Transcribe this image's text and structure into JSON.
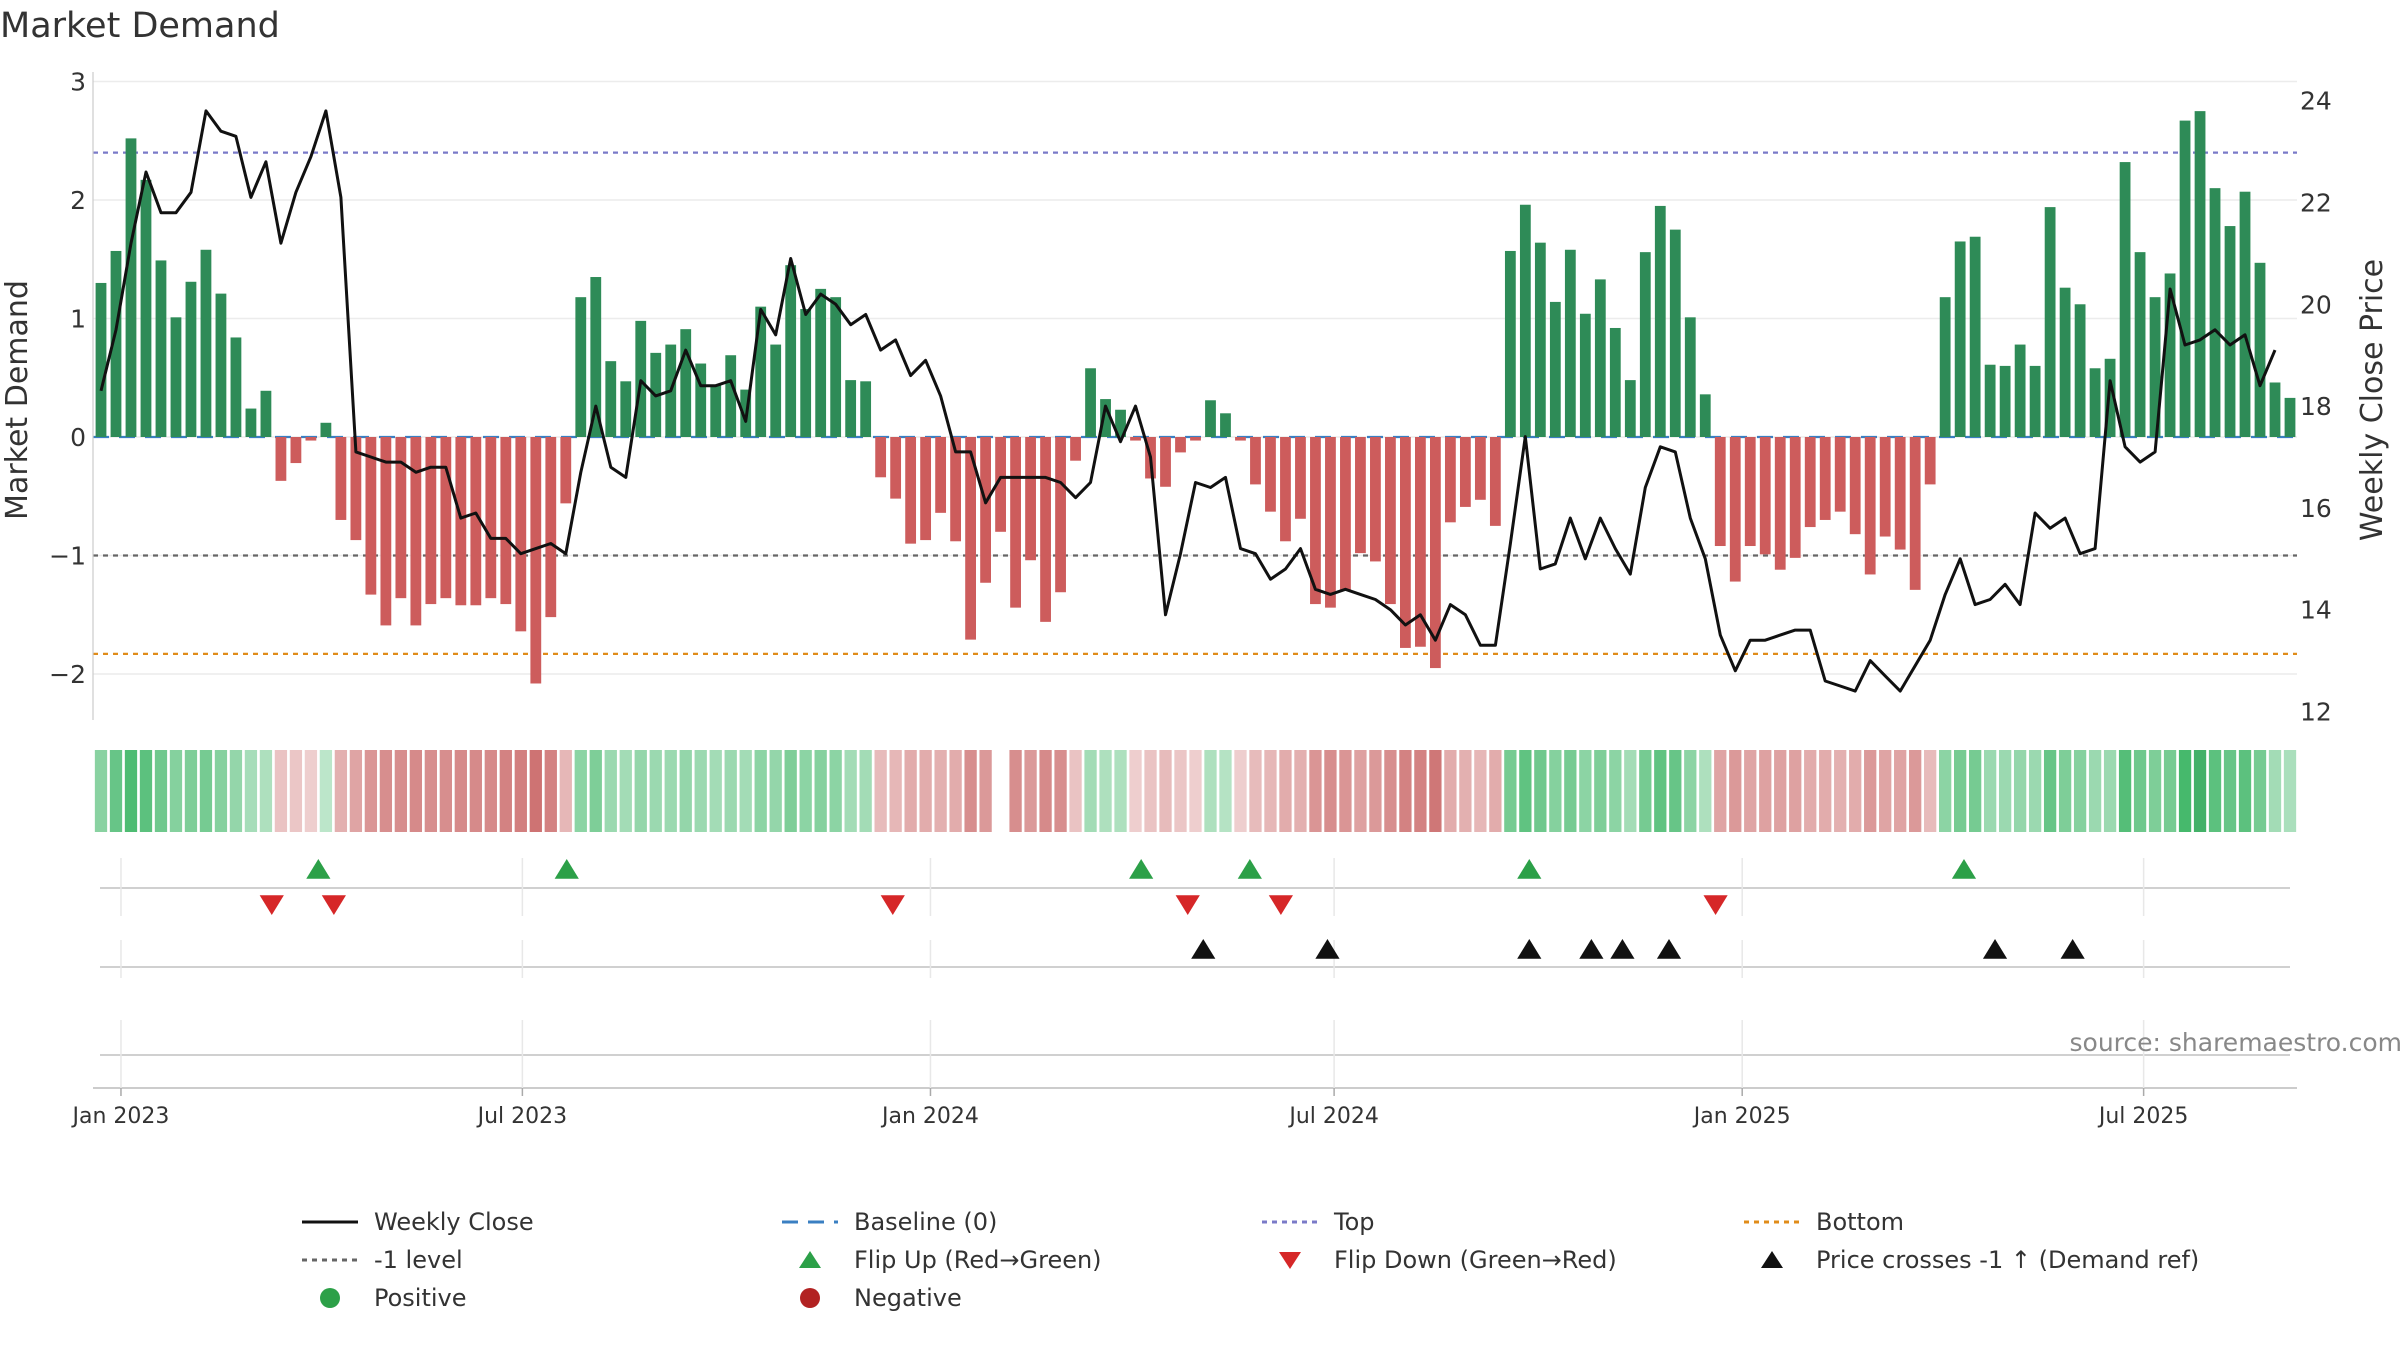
{
  "chart_data": {
    "type": "bar",
    "title": "Market Demand",
    "ylabel": "Market Demand",
    "y2label": "Weekly Close Price",
    "ylim": [
      -2.35,
      3.0
    ],
    "y2lim": [
      12,
      24.3
    ],
    "yticks": [
      -2,
      -1,
      0,
      1,
      2,
      3
    ],
    "yticklabels": [
      "−2",
      "−1",
      "0",
      "1",
      "2",
      "3"
    ],
    "y2ticks": [
      12,
      14,
      16,
      18,
      20,
      22,
      24
    ],
    "y2ticklabels": [
      "12",
      "14",
      "16",
      "18",
      "20",
      "22",
      "24"
    ],
    "x_start": "2022-12-23",
    "x_end": "2025-09-05",
    "xticks": [
      {
        "label": "Jan 2023",
        "date": "2023-01-01"
      },
      {
        "label": "Jul 2023",
        "date": "2023-07-01"
      },
      {
        "label": "Jan 2024",
        "date": "2024-01-01"
      },
      {
        "label": "Jul 2024",
        "date": "2024-07-01"
      },
      {
        "label": "Jan 2025",
        "date": "2025-01-01"
      },
      {
        "label": "Jul 2025",
        "date": "2025-07-01"
      }
    ],
    "reference_lines": [
      {
        "name": "Top",
        "value": 2.4,
        "color": "#7a7ac8"
      },
      {
        "name": "-1 level",
        "value": -1.0,
        "color": "#666666"
      },
      {
        "name": "Bottom",
        "value": -1.83,
        "color": "#e08c1a"
      },
      {
        "name": "Baseline (0)",
        "value": 0,
        "color": "#3a7fc2"
      }
    ],
    "colors": {
      "positive": "#2e8b57",
      "negative": "#cd5c5c",
      "price": "#111111",
      "flip_up": "#2ca048",
      "flip_down": "#d62728",
      "cross": "#111111"
    },
    "series": [
      {
        "name": "Market Demand",
        "values": [
          1.3,
          1.57,
          2.52,
          2.17,
          1.49,
          1.01,
          1.31,
          1.58,
          1.21,
          0.84,
          0.24,
          0.39,
          -0.37,
          -0.22,
          -0.03,
          0.12,
          -0.7,
          -0.87,
          -1.33,
          -1.59,
          -1.36,
          -1.59,
          -1.41,
          -1.36,
          -1.42,
          -1.42,
          -1.36,
          -1.41,
          -1.64,
          -2.08,
          -1.52,
          -0.56,
          1.18,
          1.35,
          0.64,
          0.47,
          0.98,
          0.71,
          0.78,
          0.91,
          0.62,
          0.44,
          0.69,
          0.4,
          1.1,
          0.78,
          1.45,
          1.08,
          1.25,
          1.18,
          0.48,
          0.47,
          -0.34,
          -0.52,
          -0.9,
          -0.87,
          -0.64,
          -0.88,
          -1.71,
          -1.23,
          -0.8,
          -1.44,
          -1.04,
          -1.56,
          -1.31,
          -0.2,
          0.58,
          0.32,
          0.23,
          -0.03,
          -0.35,
          -0.42,
          -0.13,
          -0.03,
          0.31,
          0.2,
          -0.03,
          -0.4,
          -0.63,
          -0.88,
          -0.69,
          -1.41,
          -1.44,
          -1.29,
          -0.98,
          -1.05,
          -1.41,
          -1.78,
          -1.77,
          -1.95,
          -0.72,
          -0.59,
          -0.53,
          -0.75,
          1.57,
          1.96,
          1.64,
          1.14,
          1.58,
          1.04,
          1.33,
          0.92,
          0.48,
          1.56,
          1.95,
          1.75,
          1.01,
          0.36,
          -0.92,
          -1.22,
          -0.92,
          -0.99,
          -1.12,
          -1.02,
          -0.76,
          -0.7,
          -0.63,
          -0.82,
          -1.16,
          -0.84,
          -0.95,
          -1.29,
          -0.4,
          1.18,
          1.65,
          1.69,
          0.61,
          0.6,
          0.78,
          0.6,
          1.94,
          1.26,
          1.12,
          0.58,
          0.66,
          2.32,
          1.56,
          1.18,
          1.38,
          2.67,
          2.75,
          2.1,
          1.78,
          2.07,
          1.47,
          0.46,
          0.33
        ]
      },
      {
        "name": "Weekly Close",
        "values": [
          18.3,
          19.5,
          21.2,
          22.6,
          21.8,
          21.8,
          22.2,
          23.8,
          23.4,
          23.3,
          22.1,
          22.8,
          21.2,
          22.2,
          22.9,
          23.8,
          22.1,
          17.1,
          17.0,
          16.9,
          16.9,
          16.7,
          16.8,
          16.8,
          15.8,
          15.9,
          15.4,
          15.4,
          15.1,
          15.2,
          15.3,
          15.1,
          16.7,
          18.0,
          16.8,
          16.6,
          18.5,
          18.2,
          18.3,
          19.1,
          18.4,
          18.4,
          18.5,
          17.7,
          19.9,
          19.4,
          20.9,
          19.8,
          20.2,
          20.0,
          19.6,
          19.8,
          19.1,
          19.3,
          18.6,
          18.9,
          18.2,
          17.1,
          17.1,
          16.1,
          16.6,
          16.6,
          16.6,
          16.6,
          16.5,
          16.2,
          16.5,
          18.0,
          17.3,
          18.0,
          17.0,
          13.9,
          15.1,
          16.5,
          16.4,
          16.6,
          15.2,
          15.1,
          14.6,
          14.8,
          15.2,
          14.4,
          14.3,
          14.4,
          14.3,
          14.2,
          14.0,
          13.7,
          13.9,
          13.4,
          14.1,
          13.9,
          13.3,
          13.3,
          15.3,
          17.4,
          14.8,
          14.9,
          15.8,
          15.0,
          15.8,
          15.2,
          14.7,
          16.4,
          17.2,
          17.1,
          15.8,
          15.0,
          13.5,
          12.8,
          13.4,
          13.4,
          13.5,
          13.6,
          13.6,
          12.6,
          12.5,
          12.4,
          13.0,
          12.7,
          12.4,
          12.9,
          13.4,
          14.3,
          15.0,
          14.1,
          14.2,
          14.5,
          14.1,
          15.9,
          15.6,
          15.8,
          15.1,
          15.2,
          18.5,
          17.2,
          16.9,
          17.1,
          20.3,
          19.2,
          19.3,
          19.5,
          19.2,
          19.4,
          18.4,
          19.1
        ]
      }
    ],
    "flip_up_dates": [
      "2023-03-31",
      "2023-07-21",
      "2024-04-05",
      "2024-05-24",
      "2024-09-27",
      "2025-04-11"
    ],
    "flip_down_dates": [
      "2023-03-10",
      "2023-04-07",
      "2023-12-15",
      "2024-04-26",
      "2024-06-07",
      "2024-12-20"
    ],
    "price_cross_dates": [
      "2024-05-03",
      "2024-06-28",
      "2024-09-27",
      "2024-10-25",
      "2024-11-08",
      "2024-11-29",
      "2025-04-25",
      "2025-05-30"
    ],
    "strength_strip": [
      0.85,
      1.3,
      1.7,
      1.5,
      1.2,
      0.9,
      1.0,
      1.1,
      0.9,
      0.7,
      0.4,
      0.3,
      -0.3,
      -0.2,
      -0.1,
      0.1,
      -0.6,
      -0.8,
      -1.1,
      -1.2,
      -1.2,
      -1.3,
      -1.2,
      -1.2,
      -1.3,
      -1.3,
      -1.3,
      -1.4,
      -1.5,
      -1.7,
      -1.4,
      -0.5,
      0.8,
      1.0,
      0.6,
      0.5,
      0.7,
      0.6,
      0.6,
      0.7,
      0.6,
      0.5,
      0.6,
      0.5,
      0.8,
      0.7,
      1.0,
      0.8,
      0.9,
      0.8,
      0.5,
      0.5,
      -0.4,
      -0.5,
      -0.7,
      -0.7,
      -0.6,
      -0.7,
      -1.2,
      -1.0,
      null,
      -1.2,
      -1.0,
      -1.3,
      -1.2,
      -0.3,
      0.5,
      0.3,
      0.3,
      -0.1,
      -0.3,
      -0.4,
      -0.2,
      -0.1,
      0.3,
      0.2,
      -0.1,
      -0.4,
      -0.5,
      -0.7,
      -0.6,
      -1.1,
      -1.2,
      -1.1,
      -0.9,
      -1.0,
      -1.2,
      -1.4,
      -1.4,
      -1.6,
      -0.7,
      -0.6,
      -0.5,
      -0.7,
      1.1,
      1.4,
      1.2,
      0.9,
      1.1,
      0.8,
      1.0,
      0.8,
      0.5,
      1.1,
      1.4,
      1.3,
      0.8,
      0.3,
      -0.8,
      -1.0,
      -0.8,
      -0.9,
      -0.9,
      -0.9,
      -0.7,
      -0.7,
      -0.6,
      -0.7,
      -1.0,
      -0.8,
      -0.8,
      -1.0,
      -0.4,
      0.8,
      1.1,
      1.1,
      0.6,
      0.6,
      0.7,
      0.6,
      1.3,
      1.0,
      0.9,
      0.6,
      0.6,
      1.6,
      1.2,
      1.0,
      1.1,
      1.8,
      1.9,
      1.5,
      1.3,
      1.5,
      1.1,
      0.5,
      0.35
    ],
    "source": "source: sharemaestro.com"
  },
  "legend": [
    {
      "label": "Weekly Close",
      "kind": "line-solid",
      "color": "#111111"
    },
    {
      "label": "Baseline (0)",
      "kind": "line-dashed",
      "color": "#3a7fc2"
    },
    {
      "label": "Top",
      "kind": "line-dotted",
      "color": "#7a7ac8"
    },
    {
      "label": "Bottom",
      "kind": "line-dotted",
      "color": "#e08c1a"
    },
    {
      "label": "-1 level",
      "kind": "line-dotted",
      "color": "#666666"
    },
    {
      "label": "Flip Up (Red→Green)",
      "kind": "tri-up",
      "color": "#2ca048"
    },
    {
      "label": "Flip Down (Green→Red)",
      "kind": "tri-down",
      "color": "#d62728"
    },
    {
      "label": "Price crosses -1 ↑ (Demand ref)",
      "kind": "tri-up",
      "color": "#111111"
    },
    {
      "label": "Positive",
      "kind": "dot",
      "color": "#2ca048"
    },
    {
      "label": "Negative",
      "kind": "dot",
      "color": "#b22222"
    }
  ]
}
